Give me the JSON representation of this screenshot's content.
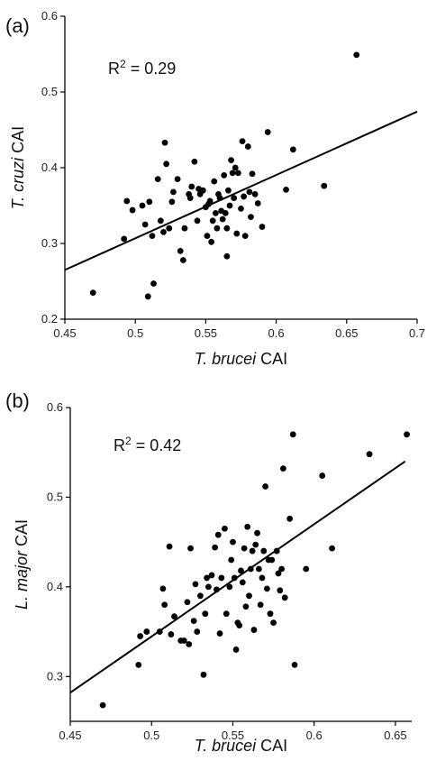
{
  "chart_data": [
    {
      "type": "scatter",
      "panel_label": "(a)",
      "annotation": {
        "prefix": "R",
        "sup": "2",
        "suffix": " = 0.29"
      },
      "xlabel": {
        "italic": "T. brucei",
        "plain": " CAI"
      },
      "ylabel": {
        "italic": "T. cruzi",
        "plain": " CAI"
      },
      "xlim": [
        0.45,
        0.7
      ],
      "ylim": [
        0.2,
        0.6
      ],
      "xticks": [
        "0.45",
        "0.5",
        "0.55",
        "0.6",
        "0.65",
        "0.7"
      ],
      "yticks": [
        "0.2",
        "0.3",
        "0.4",
        "0.5",
        "0.6"
      ],
      "grid": false,
      "fit_line": [
        [
          0.45,
          0.265
        ],
        [
          0.7,
          0.474
        ]
      ],
      "points": [
        [
          0.47,
          0.235
        ],
        [
          0.492,
          0.306
        ],
        [
          0.494,
          0.356
        ],
        [
          0.498,
          0.344
        ],
        [
          0.505,
          0.35
        ],
        [
          0.507,
          0.325
        ],
        [
          0.509,
          0.23
        ],
        [
          0.51,
          0.355
        ],
        [
          0.512,
          0.31
        ],
        [
          0.513,
          0.247
        ],
        [
          0.516,
          0.385
        ],
        [
          0.518,
          0.33
        ],
        [
          0.52,
          0.315
        ],
        [
          0.521,
          0.433
        ],
        [
          0.522,
          0.405
        ],
        [
          0.524,
          0.32
        ],
        [
          0.526,
          0.355
        ],
        [
          0.527,
          0.368
        ],
        [
          0.53,
          0.385
        ],
        [
          0.532,
          0.29
        ],
        [
          0.534,
          0.278
        ],
        [
          0.535,
          0.32
        ],
        [
          0.538,
          0.365
        ],
        [
          0.539,
          0.36
        ],
        [
          0.54,
          0.375
        ],
        [
          0.542,
          0.408
        ],
        [
          0.544,
          0.33
        ],
        [
          0.545,
          0.372
        ],
        [
          0.546,
          0.365
        ],
        [
          0.548,
          0.37
        ],
        [
          0.55,
          0.348
        ],
        [
          0.551,
          0.31
        ],
        [
          0.552,
          0.352
        ],
        [
          0.553,
          0.356
        ],
        [
          0.554,
          0.302
        ],
        [
          0.555,
          0.33
        ],
        [
          0.556,
          0.382
        ],
        [
          0.557,
          0.34
        ],
        [
          0.558,
          0.32
        ],
        [
          0.559,
          0.365
        ],
        [
          0.56,
          0.36
        ],
        [
          0.561,
          0.343
        ],
        [
          0.562,
          0.332
        ],
        [
          0.563,
          0.39
        ],
        [
          0.564,
          0.34
        ],
        [
          0.565,
          0.283
        ],
        [
          0.565,
          0.32
        ],
        [
          0.566,
          0.37
        ],
        [
          0.567,
          0.35
        ],
        [
          0.568,
          0.41
        ],
        [
          0.569,
          0.393
        ],
        [
          0.57,
          0.36
        ],
        [
          0.571,
          0.4
        ],
        [
          0.572,
          0.313
        ],
        [
          0.573,
          0.393
        ],
        [
          0.575,
          0.346
        ],
        [
          0.576,
          0.435
        ],
        [
          0.577,
          0.362
        ],
        [
          0.578,
          0.31
        ],
        [
          0.58,
          0.428
        ],
        [
          0.581,
          0.368
        ],
        [
          0.582,
          0.335
        ],
        [
          0.583,
          0.392
        ],
        [
          0.585,
          0.365
        ],
        [
          0.587,
          0.353
        ],
        [
          0.59,
          0.322
        ],
        [
          0.594,
          0.447
        ],
        [
          0.607,
          0.371
        ],
        [
          0.612,
          0.424
        ],
        [
          0.634,
          0.376
        ],
        [
          0.657,
          0.549
        ]
      ]
    },
    {
      "type": "scatter",
      "panel_label": "(b)",
      "annotation": {
        "prefix": "R",
        "sup": "2",
        "suffix": " = 0.42"
      },
      "xlabel": {
        "italic": "T. brucei",
        "plain": " CAI"
      },
      "ylabel": {
        "italic": "L. major",
        "plain": " CAI"
      },
      "xlim": [
        0.45,
        0.66
      ],
      "ylim": [
        0.25,
        0.6
      ],
      "xticks": [
        "0.45",
        "0.5",
        "0.55",
        "0.6",
        "0.65"
      ],
      "yticks": [
        "0.3",
        "0.4",
        "0.5",
        "0.6"
      ],
      "grid": false,
      "fit_line": [
        [
          0.45,
          0.282
        ],
        [
          0.656,
          0.54
        ]
      ],
      "points": [
        [
          0.47,
          0.268
        ],
        [
          0.492,
          0.313
        ],
        [
          0.493,
          0.345
        ],
        [
          0.497,
          0.35
        ],
        [
          0.505,
          0.35
        ],
        [
          0.507,
          0.398
        ],
        [
          0.508,
          0.38
        ],
        [
          0.511,
          0.445
        ],
        [
          0.512,
          0.347
        ],
        [
          0.514,
          0.367
        ],
        [
          0.518,
          0.34
        ],
        [
          0.52,
          0.34
        ],
        [
          0.522,
          0.383
        ],
        [
          0.523,
          0.336
        ],
        [
          0.524,
          0.443
        ],
        [
          0.526,
          0.362
        ],
        [
          0.527,
          0.403
        ],
        [
          0.528,
          0.35
        ],
        [
          0.53,
          0.39
        ],
        [
          0.532,
          0.302
        ],
        [
          0.533,
          0.37
        ],
        [
          0.534,
          0.41
        ],
        [
          0.535,
          0.4
        ],
        [
          0.537,
          0.413
        ],
        [
          0.539,
          0.444
        ],
        [
          0.54,
          0.397
        ],
        [
          0.541,
          0.458
        ],
        [
          0.542,
          0.348
        ],
        [
          0.543,
          0.41
        ],
        [
          0.545,
          0.465
        ],
        [
          0.546,
          0.37
        ],
        [
          0.548,
          0.4
        ],
        [
          0.549,
          0.43
        ],
        [
          0.55,
          0.45
        ],
        [
          0.551,
          0.41
        ],
        [
          0.552,
          0.33
        ],
        [
          0.553,
          0.36
        ],
        [
          0.554,
          0.357
        ],
        [
          0.555,
          0.418
        ],
        [
          0.556,
          0.405
        ],
        [
          0.557,
          0.443
        ],
        [
          0.558,
          0.378
        ],
        [
          0.559,
          0.467
        ],
        [
          0.56,
          0.39
        ],
        [
          0.561,
          0.42
        ],
        [
          0.562,
          0.44
        ],
        [
          0.563,
          0.352
        ],
        [
          0.564,
          0.447
        ],
        [
          0.565,
          0.46
        ],
        [
          0.566,
          0.42
        ],
        [
          0.567,
          0.38
        ],
        [
          0.568,
          0.41
        ],
        [
          0.569,
          0.44
        ],
        [
          0.57,
          0.512
        ],
        [
          0.571,
          0.398
        ],
        [
          0.572,
          0.43
        ],
        [
          0.573,
          0.37
        ],
        [
          0.574,
          0.43
        ],
        [
          0.575,
          0.36
        ],
        [
          0.577,
          0.44
        ],
        [
          0.578,
          0.415
        ],
        [
          0.579,
          0.396
        ],
        [
          0.58,
          0.42
        ],
        [
          0.581,
          0.532
        ],
        [
          0.582,
          0.388
        ],
        [
          0.585,
          0.476
        ],
        [
          0.587,
          0.57
        ],
        [
          0.588,
          0.313
        ],
        [
          0.595,
          0.42
        ],
        [
          0.605,
          0.524
        ],
        [
          0.611,
          0.443
        ],
        [
          0.634,
          0.548
        ],
        [
          0.657,
          0.57
        ]
      ]
    }
  ]
}
